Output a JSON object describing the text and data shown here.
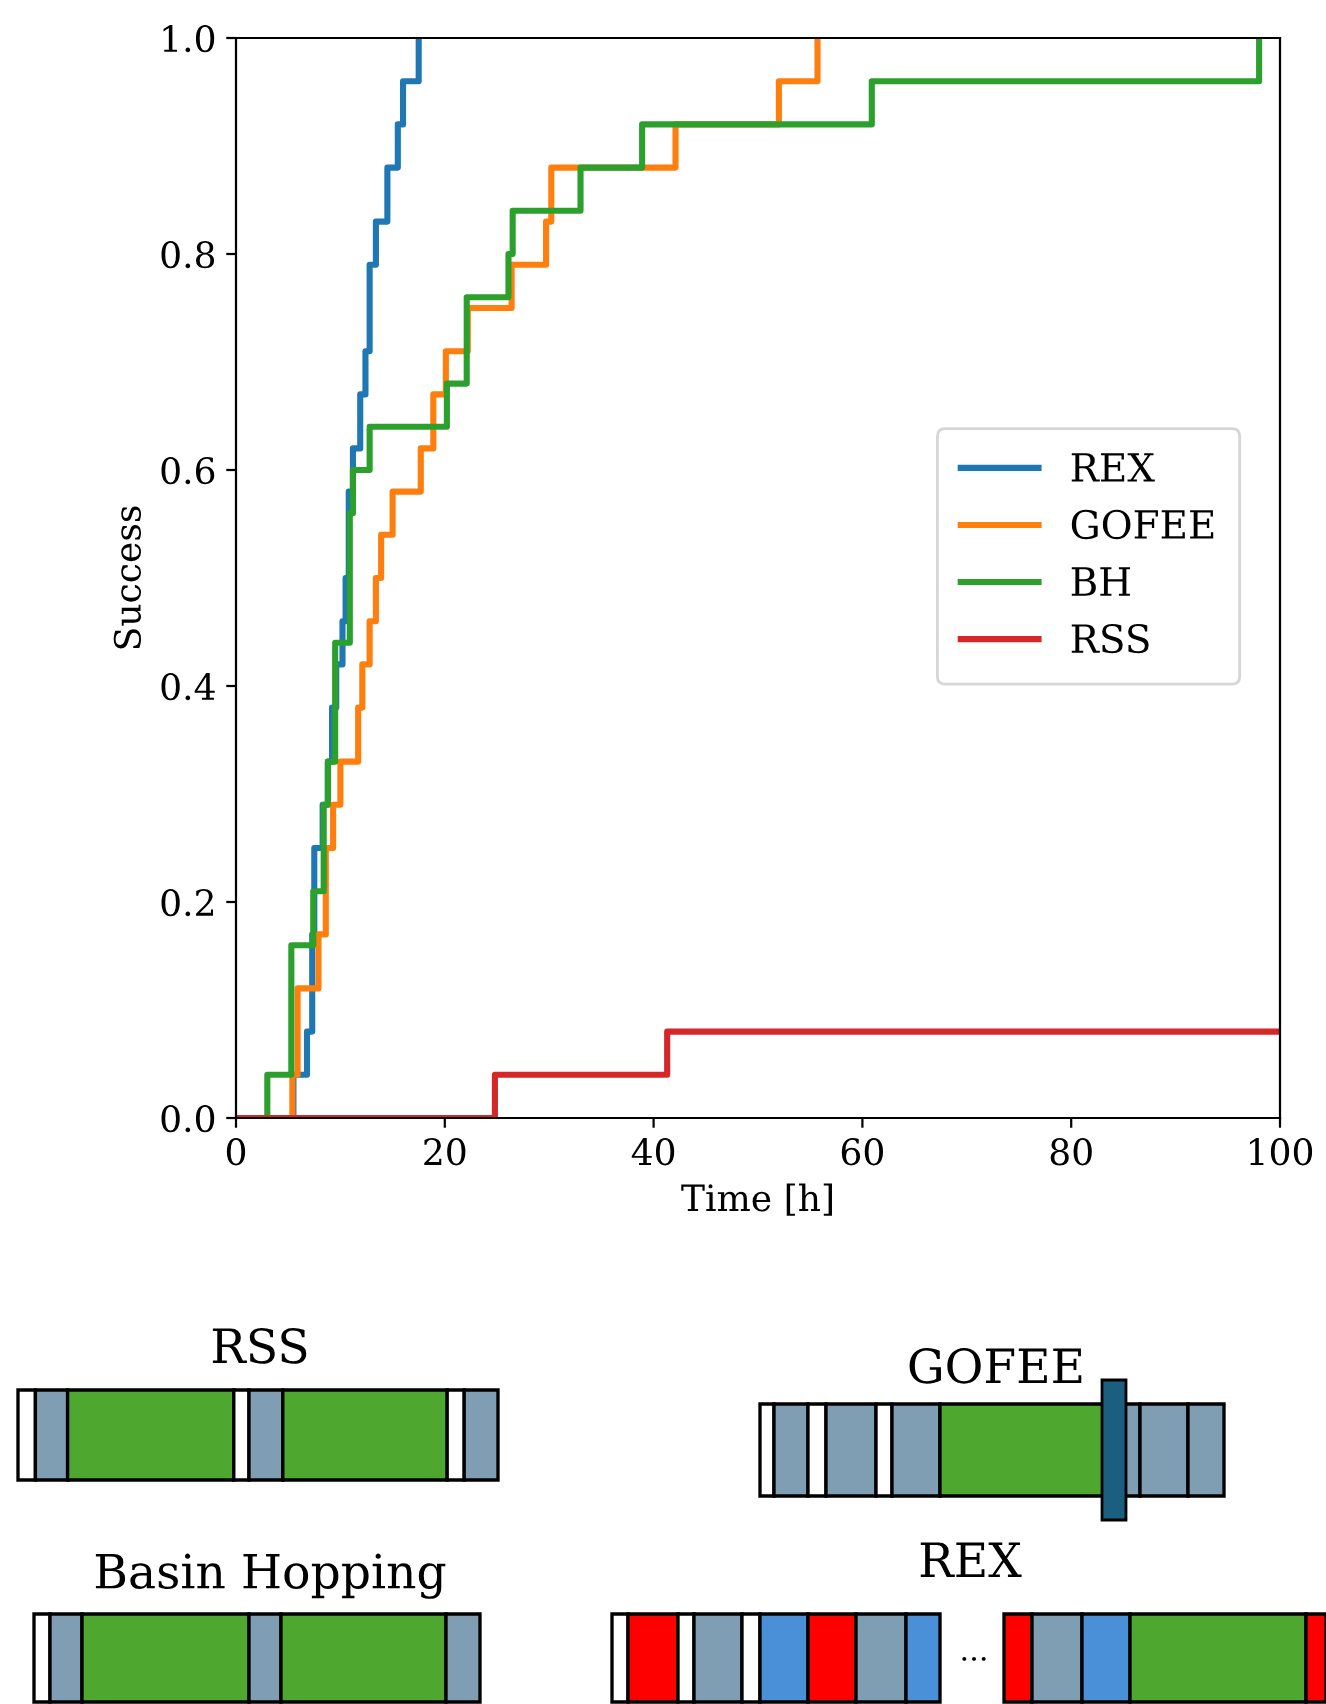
{
  "chart_data": {
    "type": "step",
    "xlabel": "Time [h]",
    "ylabel": "Success",
    "xlim": [
      0,
      100
    ],
    "ylim": [
      0,
      1.0
    ],
    "xticks": [
      0,
      20,
      40,
      60,
      80,
      100
    ],
    "yticks": [
      {
        "value": 0,
        "label": "0.0"
      },
      0.2,
      0.4,
      0.6,
      0.8,
      {
        "value": 1,
        "label": "1.0"
      }
    ],
    "grid": false,
    "legend": "right",
    "series": [
      {
        "name": "REX",
        "color": "#1f77b4",
        "x": [
          0,
          5.5,
          6.8,
          7.3,
          7.5,
          8.3,
          8.8,
          9.2,
          9.6,
          10.2,
          10.5,
          10.8,
          11.2,
          11.9,
          12.4,
          12.8,
          13.4,
          14.5,
          15.5,
          16.0,
          17.5
        ],
        "values": [
          0,
          0.04,
          0.08,
          0.17,
          0.25,
          0.29,
          0.33,
          0.38,
          0.42,
          0.46,
          0.5,
          0.58,
          0.62,
          0.67,
          0.71,
          0.79,
          0.83,
          0.88,
          0.92,
          0.96,
          1.0
        ]
      },
      {
        "name": "GOFEE",
        "color": "#ff7f0e",
        "x": [
          0,
          5.4,
          5.9,
          7.9,
          8.6,
          9.3,
          10.0,
          11.7,
          12.1,
          12.8,
          13.4,
          13.9,
          15.0,
          17.7,
          18.9,
          20.1,
          22.2,
          26.4,
          29.7,
          30.2,
          42.1,
          52.0,
          55.7
        ],
        "values": [
          0,
          0.04,
          0.12,
          0.17,
          0.25,
          0.29,
          0.33,
          0.38,
          0.42,
          0.46,
          0.5,
          0.54,
          0.58,
          0.62,
          0.67,
          0.71,
          0.75,
          0.79,
          0.83,
          0.88,
          0.92,
          0.96,
          1.0
        ]
      },
      {
        "name": "BH",
        "color": "#2ca02c",
        "x": [
          0,
          3.0,
          5.3,
          7.4,
          8.4,
          8.8,
          9.5,
          10.9,
          11.2,
          12.8,
          20.2,
          22.1,
          26.1,
          26.5,
          33.0,
          38.9,
          60.9,
          98.0
        ],
        "values": [
          0,
          0.04,
          0.16,
          0.21,
          0.29,
          0.33,
          0.44,
          0.56,
          0.6,
          0.64,
          0.68,
          0.76,
          0.8,
          0.84,
          0.88,
          0.92,
          0.96,
          1.0
        ]
      },
      {
        "name": "RSS",
        "color": "#d62728",
        "x": [
          0,
          24.8,
          41.3,
          100
        ],
        "values": [
          0,
          0.04,
          0.08,
          0.08
        ]
      }
    ],
    "annotations": [
      "RSS",
      "GOFEE",
      "Basin Hopping",
      "REX",
      "..."
    ]
  }
}
